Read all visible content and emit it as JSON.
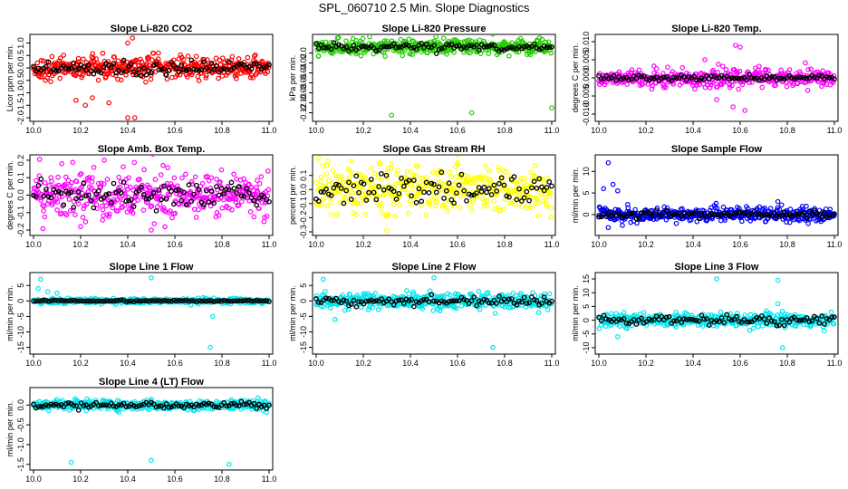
{
  "figure_title": "SPL_060710  2.5 Min. Slope Diagnostics",
  "colors": {
    "red": "#ff0000",
    "green": "#22cc00",
    "magenta": "#ff00ff",
    "yellow": "#ffff00",
    "blue": "#0000ff",
    "cyan": "#00e5ee",
    "black": "#000000"
  },
  "chart_data": [
    {
      "type": "scatter",
      "title": "Slope Li-820 CO2",
      "ylabel": "Licor ppm per min.",
      "xlim": [
        10.0,
        11.0
      ],
      "ylim": [
        -2.0,
        1.2
      ],
      "xticks": [
        "10.0",
        "10.2",
        "10.4",
        "10.6",
        "10.8",
        "11.0"
      ],
      "yticks": [
        {
          "v": 1.0,
          "t": "1.0"
        },
        {
          "v": 0.5,
          "t": "0.5"
        },
        {
          "v": 0.0,
          "t": "0.0"
        },
        {
          "v": -0.5,
          "t": "-0.5"
        },
        {
          "v": -1.0,
          "t": "-1.0"
        },
        {
          "v": -1.5,
          "t": "-1.5"
        },
        {
          "v": -2.0,
          "t": "-2.0"
        }
      ],
      "color": "red",
      "center": 0.0,
      "spread": 0.22,
      "black_spread": 0.15,
      "outliers": [
        {
          "x": 10.4,
          "y": 1.0
        },
        {
          "x": 10.42,
          "y": 1.2
        },
        {
          "x": 10.18,
          "y": -1.3
        },
        {
          "x": 10.22,
          "y": -1.5
        },
        {
          "x": 10.25,
          "y": -1.2
        },
        {
          "x": 10.4,
          "y": -2.0
        },
        {
          "x": 10.43,
          "y": -2.0
        },
        {
          "x": 10.32,
          "y": -1.4
        }
      ]
    },
    {
      "type": "scatter",
      "title": "Slope Li-820 Pressure",
      "ylabel": "kPa per min.",
      "xlim": [
        10.0,
        11.0
      ],
      "ylim": [
        -0.13,
        0.03
      ],
      "xticks": [
        "10.0",
        "10.2",
        "10.4",
        "10.6",
        "10.8",
        "11.0"
      ],
      "yticks": [
        {
          "v": 0.0,
          "t": "0.0"
        },
        {
          "v": -0.02,
          "t": "-0.02"
        },
        {
          "v": -0.04,
          "t": "-0.04"
        },
        {
          "v": -0.06,
          "t": "-0.06"
        },
        {
          "v": -0.08,
          "t": "-0.08"
        },
        {
          "v": -0.1,
          "t": "-0.10"
        },
        {
          "v": -0.12,
          "t": "-0.12"
        }
      ],
      "color": "green",
      "center": 0.012,
      "spread": 0.007,
      "black_spread": 0.004,
      "outliers": [
        {
          "x": 10.32,
          "y": -0.125
        },
        {
          "x": 10.66,
          "y": -0.12
        },
        {
          "x": 11.0,
          "y": -0.11
        },
        {
          "x": 10.01,
          "y": -0.006
        }
      ]
    },
    {
      "type": "scatter",
      "title": "Slope Li-820 Temp.",
      "ylabel": "degrees C per min.",
      "xlim": [
        10.0,
        11.0
      ],
      "ylim": [
        -0.011,
        0.011
      ],
      "xticks": [
        "10.0",
        "10.2",
        "10.4",
        "10.6",
        "10.8",
        "11.0"
      ],
      "yticks": [
        {
          "v": 0.01,
          "t": "0.010"
        },
        {
          "v": 0.005,
          "t": "0.005"
        },
        {
          "v": 0.0,
          "t": "0.000"
        },
        {
          "v": -0.005,
          "t": "-0.005"
        },
        {
          "v": -0.01,
          "t": "-0.010"
        }
      ],
      "color": "magenta",
      "center": 0.0,
      "spread": 0.0012,
      "black_spread": 0.0004,
      "outliers": [
        {
          "x": 10.58,
          "y": 0.009
        },
        {
          "x": 10.6,
          "y": 0.0085
        },
        {
          "x": 10.57,
          "y": -0.008
        },
        {
          "x": 10.62,
          "y": -0.009
        },
        {
          "x": 10.5,
          "y": -0.006
        },
        {
          "x": 10.45,
          "y": 0.005
        }
      ]
    },
    {
      "type": "scatter",
      "title": "Slope Amb. Box Temp.",
      "ylabel": "degrees C per min.",
      "xlim": [
        10.0,
        11.0
      ],
      "ylim": [
        -0.21,
        0.21
      ],
      "xticks": [
        "10.0",
        "10.2",
        "10.4",
        "10.6",
        "10.8",
        "11.0"
      ],
      "yticks": [
        {
          "v": 0.2,
          "t": "0.2"
        },
        {
          "v": 0.1,
          "t": "0.1"
        },
        {
          "v": 0.0,
          "t": "0.0"
        },
        {
          "v": -0.1,
          "t": "-0.1"
        },
        {
          "v": -0.2,
          "t": "-0.2"
        }
      ],
      "color": "magenta",
      "center": 0.0,
      "spread": 0.07,
      "black_spread": 0.04,
      "outliers": [
        {
          "x": 10.12,
          "y": 0.18
        },
        {
          "x": 10.3,
          "y": 0.2
        },
        {
          "x": 10.55,
          "y": 0.17
        },
        {
          "x": 10.2,
          "y": -0.18
        },
        {
          "x": 10.5,
          "y": -0.2
        }
      ]
    },
    {
      "type": "scatter",
      "title": "Slope Gas Stream RH",
      "ylabel": "percent per min.",
      "xlim": [
        10.0,
        11.0
      ],
      "ylim": [
        -0.3,
        0.22
      ],
      "xticks": [
        "10.0",
        "10.2",
        "10.4",
        "10.6",
        "10.8",
        "11.0"
      ],
      "yticks": [
        {
          "v": 0.1,
          "t": "0.1"
        },
        {
          "v": 0.0,
          "t": "0.0"
        },
        {
          "v": -0.1,
          "t": "-0.1"
        },
        {
          "v": -0.2,
          "t": "-0.2"
        },
        {
          "v": -0.3,
          "t": "-0.3"
        }
      ],
      "color": "yellow",
      "center": 0.0,
      "spread": 0.08,
      "black_spread": 0.05,
      "outliers": [
        {
          "x": 10.3,
          "y": -0.29
        },
        {
          "x": 10.15,
          "y": 0.2
        },
        {
          "x": 10.6,
          "y": 0.19
        }
      ]
    },
    {
      "type": "scatter",
      "title": "Slope Sample Flow",
      "ylabel": "ml/min per min.",
      "xlim": [
        10.0,
        11.0
      ],
      "ylim": [
        -4.0,
        13.0
      ],
      "xticks": [
        "10.0",
        "10.2",
        "10.4",
        "10.6",
        "10.8",
        "11.0"
      ],
      "yticks": [
        {
          "v": 10,
          "t": "10"
        },
        {
          "v": 5,
          "t": "5"
        },
        {
          "v": 0,
          "t": "0"
        }
      ],
      "color": "blue",
      "center": 0.0,
      "spread": 0.8,
      "black_spread": 0.4,
      "outliers": [
        {
          "x": 10.04,
          "y": 12.0
        },
        {
          "x": 10.06,
          "y": 7.0
        },
        {
          "x": 10.02,
          "y": 6.0
        },
        {
          "x": 10.08,
          "y": 5.5
        },
        {
          "x": 10.76,
          "y": 3.0
        },
        {
          "x": 10.04,
          "y": -3.0
        },
        {
          "x": 10.1,
          "y": -2.5
        }
      ]
    },
    {
      "type": "scatter",
      "title": "Slope Line 1 Flow",
      "ylabel": "ml/min per min.",
      "xlim": [
        10.0,
        11.0
      ],
      "ylim": [
        -16.0,
        8.0
      ],
      "xticks": [
        "10.0",
        "10.2",
        "10.4",
        "10.6",
        "10.8",
        "11.0"
      ],
      "yticks": [
        {
          "v": 5,
          "t": "5"
        },
        {
          "v": 0,
          "t": "0"
        },
        {
          "v": -5,
          "t": "-5"
        },
        {
          "v": -10,
          "t": "-10"
        },
        {
          "v": -15,
          "t": "-15"
        }
      ],
      "color": "cyan",
      "center": 0.0,
      "spread": 0.4,
      "black_spread": 0.1,
      "outliers": [
        {
          "x": 10.03,
          "y": 7.0
        },
        {
          "x": 10.5,
          "y": 7.5
        },
        {
          "x": 10.75,
          "y": -15.0
        },
        {
          "x": 10.76,
          "y": -5.0
        },
        {
          "x": 10.02,
          "y": 4.0
        },
        {
          "x": 10.06,
          "y": 3.0
        },
        {
          "x": 10.1,
          "y": 2.5
        }
      ]
    },
    {
      "type": "scatter",
      "title": "Slope Line 2 Flow",
      "ylabel": "ml/min per min.",
      "xlim": [
        10.0,
        11.0
      ],
      "ylim": [
        -16.0,
        8.0
      ],
      "xticks": [
        "10.0",
        "10.2",
        "10.4",
        "10.6",
        "10.8",
        "11.0"
      ],
      "yticks": [
        {
          "v": 5,
          "t": "5"
        },
        {
          "v": 0,
          "t": "0"
        },
        {
          "v": -5,
          "t": "-5"
        },
        {
          "v": -10,
          "t": "-10"
        },
        {
          "v": -15,
          "t": "-15"
        }
      ],
      "color": "cyan",
      "center": 0.0,
      "spread": 1.2,
      "black_spread": 0.7,
      "outliers": [
        {
          "x": 10.03,
          "y": 7.0
        },
        {
          "x": 10.5,
          "y": 7.5
        },
        {
          "x": 10.75,
          "y": -15.0
        },
        {
          "x": 10.08,
          "y": -6.0
        },
        {
          "x": 10.76,
          "y": -4.0
        }
      ]
    },
    {
      "type": "scatter",
      "title": "Slope Line 3 Flow",
      "ylabel": "ml/min per min.",
      "xlim": [
        10.0,
        11.0
      ],
      "ylim": [
        -11.0,
        16.0
      ],
      "xticks": [
        "10.0",
        "10.2",
        "10.4",
        "10.6",
        "10.8",
        "11.0"
      ],
      "yticks": [
        {
          "v": 15,
          "t": "15"
        },
        {
          "v": 10,
          "t": "10"
        },
        {
          "v": 5,
          "t": "5"
        },
        {
          "v": 0,
          "t": "0"
        },
        {
          "v": -5,
          "t": "-5"
        },
        {
          "v": -10,
          "t": "-10"
        }
      ],
      "color": "cyan",
      "center": 0.0,
      "spread": 1.2,
      "black_spread": 0.8,
      "outliers": [
        {
          "x": 10.5,
          "y": 15.0
        },
        {
          "x": 10.76,
          "y": 14.5
        },
        {
          "x": 10.78,
          "y": -10.0
        },
        {
          "x": 10.08,
          "y": -6.0
        },
        {
          "x": 10.76,
          "y": 6.0
        }
      ]
    },
    {
      "type": "scatter",
      "title": "Slope Line 4 (LT) Flow",
      "ylabel": "ml/min per min.",
      "xlim": [
        10.0,
        11.0
      ],
      "ylim": [
        -1.55,
        0.35
      ],
      "xticks": [
        "10.0",
        "10.2",
        "10.4",
        "10.6",
        "10.8",
        "11.0"
      ],
      "yticks": [
        {
          "v": 0.0,
          "t": "0.0"
        },
        {
          "v": -0.5,
          "t": "-0.5"
        },
        {
          "v": -1.0,
          "t": "-1.0"
        },
        {
          "v": -1.5,
          "t": "-1.5"
        }
      ],
      "color": "cyan",
      "center": 0.0,
      "spread": 0.06,
      "black_spread": 0.04,
      "outliers": [
        {
          "x": 10.16,
          "y": -1.45
        },
        {
          "x": 10.5,
          "y": -1.4
        },
        {
          "x": 10.83,
          "y": -1.5
        }
      ]
    }
  ]
}
